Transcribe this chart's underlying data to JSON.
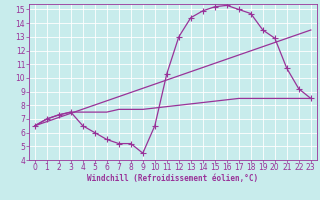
{
  "background_color": "#c8ecec",
  "grid_color": "#b0d8d8",
  "line_color": "#993399",
  "xlabel": "Windchill (Refroidissement éolien,°C)",
  "xlim": [
    -0.5,
    23.5
  ],
  "ylim": [
    4,
    15.4
  ],
  "xticks": [
    0,
    1,
    2,
    3,
    4,
    5,
    6,
    7,
    8,
    9,
    10,
    11,
    12,
    13,
    14,
    15,
    16,
    17,
    18,
    19,
    20,
    21,
    22,
    23
  ],
  "yticks": [
    4,
    5,
    6,
    7,
    8,
    9,
    10,
    11,
    12,
    13,
    14,
    15
  ],
  "curve1_x": [
    0,
    1,
    2,
    3,
    4,
    5,
    6,
    7,
    8,
    9,
    10,
    11,
    12,
    13,
    14,
    15,
    16,
    17,
    18,
    19,
    20,
    21,
    22,
    23
  ],
  "curve1_y": [
    6.5,
    7.0,
    7.3,
    7.5,
    6.5,
    6.0,
    5.5,
    5.2,
    5.2,
    4.5,
    6.5,
    10.3,
    13.0,
    14.4,
    14.9,
    15.2,
    15.3,
    15.0,
    14.7,
    13.5,
    12.9,
    10.7,
    9.2,
    8.5
  ],
  "line2_x": [
    0,
    23
  ],
  "line2_y": [
    6.5,
    13.5
  ],
  "line3_x": [
    0,
    1,
    2,
    3,
    4,
    5,
    6,
    7,
    8,
    9,
    10,
    11,
    12,
    13,
    14,
    15,
    16,
    17,
    18,
    19,
    20,
    21,
    22,
    23
  ],
  "line3_y": [
    6.5,
    7.0,
    7.3,
    7.5,
    7.5,
    7.5,
    7.5,
    7.7,
    7.7,
    7.7,
    7.8,
    7.9,
    8.0,
    8.1,
    8.2,
    8.3,
    8.4,
    8.5,
    8.5,
    8.5,
    8.5,
    8.5,
    8.5,
    8.5
  ],
  "tick_fontsize": 5.5,
  "xlabel_fontsize": 5.5,
  "linewidth": 0.9,
  "markersize": 2.5
}
